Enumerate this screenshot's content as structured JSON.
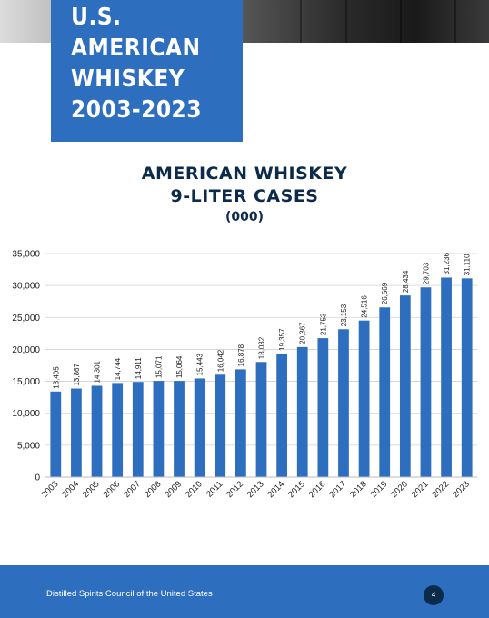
{
  "header": {
    "title_lines": [
      "U.S.",
      "AMERICAN",
      "WHISKEY",
      "2003-2023"
    ]
  },
  "chart_data": {
    "type": "bar",
    "title_lines": [
      "AMERICAN WHISKEY",
      "9-LITER CASES",
      "(000)"
    ],
    "categories": [
      "2003",
      "2004",
      "2005",
      "2006",
      "2007",
      "2008",
      "2009",
      "2010",
      "2011",
      "2012",
      "2013",
      "2014",
      "2015",
      "2016",
      "2017",
      "2018",
      "2019",
      "2020",
      "2021",
      "2022",
      "2023"
    ],
    "values": [
      13405,
      13867,
      14301,
      14744,
      14911,
      15071,
      15064,
      15443,
      16042,
      16878,
      18032,
      19357,
      20367,
      21753,
      23153,
      24516,
      26569,
      28434,
      29703,
      31236,
      31110
    ],
    "value_labels": [
      "13,405",
      "13,867",
      "14,301",
      "14,744",
      "14,911",
      "15,071",
      "15,064",
      "15,443",
      "16,042",
      "16,878",
      "18,032",
      "19,357",
      "20,367",
      "21,753",
      "23,153",
      "24,516",
      "26,569",
      "28,434",
      "29,703",
      "31,236",
      "31,110"
    ],
    "yticks": [
      0,
      5000,
      10000,
      15000,
      20000,
      25000,
      30000,
      35000
    ],
    "ytick_labels": [
      "0",
      "5,000",
      "10,000",
      "15,000",
      "20,000",
      "25,000",
      "30,000",
      "35,000"
    ],
    "ylim": [
      0,
      35000
    ],
    "grid": true,
    "bar_color": "#2e6ebf"
  },
  "footer": {
    "organization": "Distilled Spirits Council of the United States",
    "page_number": "4"
  }
}
